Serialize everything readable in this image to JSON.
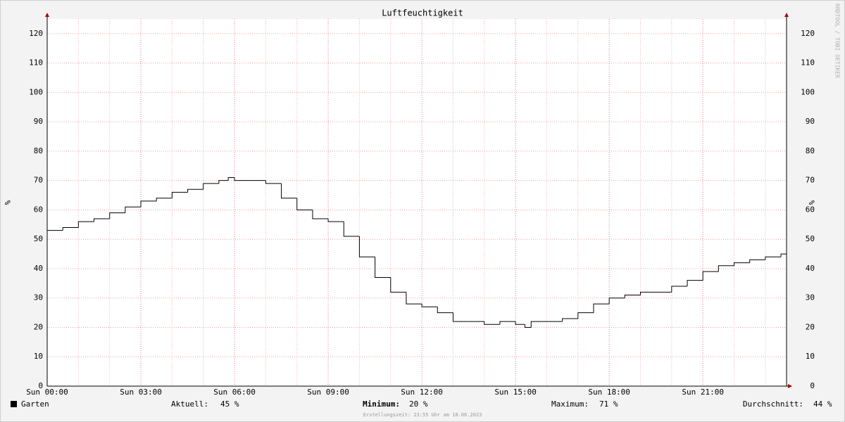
{
  "chart_data": {
    "type": "line",
    "title": "Luftfeuchtigkeit",
    "ylabel": "%",
    "watermark": "RRDTOOL / TOBI OETIKER",
    "xlim": [
      0,
      23.68
    ],
    "xticks": [
      {
        "value": 0,
        "label": "Sun 00:00"
      },
      {
        "value": 3,
        "label": "Sun 03:00"
      },
      {
        "value": 6,
        "label": "Sun 06:00"
      },
      {
        "value": 9,
        "label": "Sun 09:00"
      },
      {
        "value": 12,
        "label": "Sun 12:00"
      },
      {
        "value": 15,
        "label": "Sun 15:00"
      },
      {
        "value": 18,
        "label": "Sun 18:00"
      },
      {
        "value": 21,
        "label": "Sun 21:00"
      }
    ],
    "xgrid": [
      1,
      2,
      4,
      5,
      7,
      8,
      10,
      11,
      13,
      14,
      16,
      17,
      19,
      20,
      22,
      23
    ],
    "ylim": [
      0,
      125
    ],
    "yticks": [
      0,
      10,
      20,
      30,
      40,
      50,
      60,
      70,
      80,
      90,
      100,
      110,
      120
    ],
    "grid": true,
    "series": [
      {
        "name": "Garten",
        "color": "#000000",
        "x": [
          0,
          0.5,
          1,
          1.5,
          2,
          2.5,
          3,
          3.5,
          4,
          4.5,
          5,
          5.5,
          5.8,
          6,
          6.5,
          7,
          7.5,
          8,
          8.5,
          9,
          9.5,
          10,
          10.5,
          11,
          11.5,
          12,
          12.5,
          13,
          13.5,
          14,
          14.5,
          15,
          15.3,
          15.5,
          16,
          16.5,
          17,
          17.5,
          18,
          18.5,
          19,
          19.5,
          20,
          20.5,
          21,
          21.5,
          22,
          22.5,
          23,
          23.5
        ],
        "values": [
          53,
          54,
          56,
          57,
          59,
          61,
          63,
          64,
          66,
          67,
          69,
          70,
          71,
          70,
          70,
          69,
          64,
          60,
          57,
          56,
          51,
          44,
          37,
          32,
          28,
          27,
          25,
          22,
          22,
          21,
          22,
          21,
          20,
          22,
          22,
          23,
          25,
          28,
          30,
          31,
          32,
          32,
          34,
          36,
          39,
          41,
          42,
          43,
          44,
          45
        ]
      }
    ],
    "stats": [
      {
        "label": "Aktuell:",
        "text": "45 %"
      },
      {
        "label": "Minimum:",
        "text": "20 %"
      },
      {
        "label": "Maximum:",
        "text": "71 %"
      },
      {
        "label": "Durchschnitt:",
        "text": "44 %"
      }
    ],
    "footer": "Erstellungszeit: 23:55 Uhr am 18.06.2023"
  }
}
